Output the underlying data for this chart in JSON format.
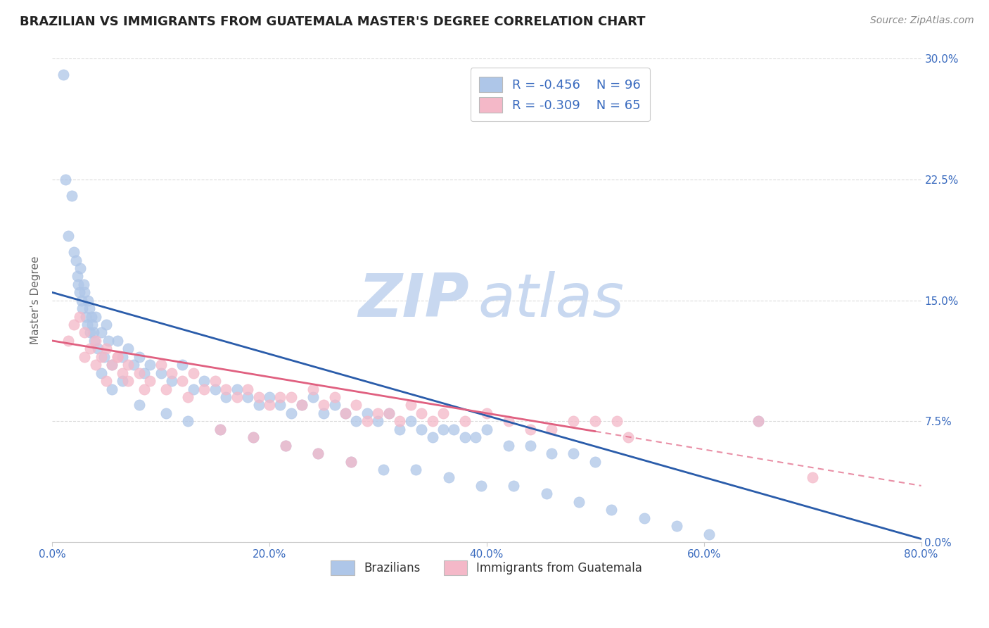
{
  "title": "BRAZILIAN VS IMMIGRANTS FROM GUATEMALA MASTER'S DEGREE CORRELATION CHART",
  "source_text": "Source: ZipAtlas.com",
  "ylabel": "Master's Degree",
  "xlim": [
    0.0,
    80.0
  ],
  "ylim": [
    0.0,
    30.0
  ],
  "x_ticks": [
    0.0,
    20.0,
    40.0,
    60.0,
    80.0
  ],
  "x_tick_labels": [
    "0.0%",
    "20.0%",
    "40.0%",
    "60.0%",
    "80.0%"
  ],
  "y_ticks_right": [
    0.0,
    7.5,
    15.0,
    22.5,
    30.0
  ],
  "y_tick_labels_right": [
    "0.0%",
    "7.5%",
    "15.0%",
    "22.5%",
    "30.0%"
  ],
  "color_brazilian": "#aec6e8",
  "color_guatemala": "#f4b8c8",
  "line_color_brazilian": "#2a5caa",
  "line_color_guatemala": "#e06080",
  "watermark_zip_color": "#c8d8f0",
  "watermark_atlas_color": "#c8d8f0",
  "legend_label_brazilian": "Brazilians",
  "legend_label_guatemala": "Immigrants from Guatemala",
  "title_color": "#222222",
  "axis_label_color": "#3a6bbf",
  "legend_text_color": "#3a6bbf",
  "background_color": "#ffffff",
  "grid_color": "#d8d8d8",
  "blue_line_start_y": 15.5,
  "blue_line_end_y": 0.2,
  "pink_line_start_y": 12.5,
  "pink_line_end_y": 3.5,
  "brazilian_x": [
    1.0,
    1.2,
    1.5,
    1.8,
    2.0,
    2.2,
    2.3,
    2.4,
    2.5,
    2.6,
    2.7,
    2.8,
    2.9,
    3.0,
    3.1,
    3.2,
    3.3,
    3.4,
    3.5,
    3.6,
    3.7,
    3.8,
    3.9,
    4.0,
    4.2,
    4.5,
    4.8,
    5.0,
    5.2,
    5.5,
    6.0,
    6.5,
    7.0,
    7.5,
    8.0,
    8.5,
    9.0,
    10.0,
    11.0,
    12.0,
    13.0,
    14.0,
    15.0,
    16.0,
    17.0,
    18.0,
    19.0,
    20.0,
    21.0,
    22.0,
    23.0,
    24.0,
    25.0,
    26.0,
    27.0,
    28.0,
    29.0,
    30.0,
    31.0,
    32.0,
    33.0,
    34.0,
    35.0,
    36.0,
    37.0,
    38.0,
    39.0,
    40.0,
    42.0,
    44.0,
    46.0,
    48.0,
    50.0,
    4.5,
    5.5,
    6.5,
    8.0,
    10.5,
    12.5,
    15.5,
    18.5,
    21.5,
    24.5,
    27.5,
    30.5,
    33.5,
    36.5,
    39.5,
    42.5,
    45.5,
    48.5,
    51.5,
    54.5,
    57.5,
    60.5,
    65.0
  ],
  "brazilian_y": [
    29.0,
    22.5,
    19.0,
    21.5,
    18.0,
    17.5,
    16.5,
    16.0,
    15.5,
    17.0,
    15.0,
    14.5,
    16.0,
    15.5,
    14.0,
    13.5,
    15.0,
    14.5,
    13.0,
    14.0,
    13.5,
    13.0,
    12.5,
    14.0,
    12.0,
    13.0,
    11.5,
    13.5,
    12.5,
    11.0,
    12.5,
    11.5,
    12.0,
    11.0,
    11.5,
    10.5,
    11.0,
    10.5,
    10.0,
    11.0,
    9.5,
    10.0,
    9.5,
    9.0,
    9.5,
    9.0,
    8.5,
    9.0,
    8.5,
    8.0,
    8.5,
    9.0,
    8.0,
    8.5,
    8.0,
    7.5,
    8.0,
    7.5,
    8.0,
    7.0,
    7.5,
    7.0,
    6.5,
    7.0,
    7.0,
    6.5,
    6.5,
    7.0,
    6.0,
    6.0,
    5.5,
    5.5,
    5.0,
    10.5,
    9.5,
    10.0,
    8.5,
    8.0,
    7.5,
    7.0,
    6.5,
    6.0,
    5.5,
    5.0,
    4.5,
    4.5,
    4.0,
    3.5,
    3.5,
    3.0,
    2.5,
    2.0,
    1.5,
    1.0,
    0.5,
    7.5
  ],
  "guatemala_x": [
    1.5,
    2.0,
    2.5,
    3.0,
    3.5,
    4.0,
    4.5,
    5.0,
    5.5,
    6.0,
    6.5,
    7.0,
    8.0,
    9.0,
    10.0,
    11.0,
    12.0,
    13.0,
    14.0,
    15.0,
    16.0,
    17.0,
    18.0,
    19.0,
    20.0,
    21.0,
    22.0,
    23.0,
    24.0,
    25.0,
    26.0,
    27.0,
    28.0,
    29.0,
    30.0,
    31.0,
    32.0,
    33.0,
    34.0,
    35.0,
    36.0,
    38.0,
    40.0,
    42.0,
    44.0,
    46.0,
    48.0,
    50.0,
    52.0,
    53.0,
    3.0,
    4.0,
    5.0,
    6.0,
    7.0,
    8.5,
    10.5,
    12.5,
    15.5,
    18.5,
    21.5,
    24.5,
    27.5,
    65.0,
    70.0
  ],
  "guatemala_y": [
    12.5,
    13.5,
    14.0,
    13.0,
    12.0,
    12.5,
    11.5,
    12.0,
    11.0,
    11.5,
    10.5,
    11.0,
    10.5,
    10.0,
    11.0,
    10.5,
    10.0,
    10.5,
    9.5,
    10.0,
    9.5,
    9.0,
    9.5,
    9.0,
    8.5,
    9.0,
    9.0,
    8.5,
    9.5,
    8.5,
    9.0,
    8.0,
    8.5,
    7.5,
    8.0,
    8.0,
    7.5,
    8.5,
    8.0,
    7.5,
    8.0,
    7.5,
    8.0,
    7.5,
    7.0,
    7.0,
    7.5,
    7.5,
    7.5,
    6.5,
    11.5,
    11.0,
    10.0,
    11.5,
    10.0,
    9.5,
    9.5,
    9.0,
    7.0,
    6.5,
    6.0,
    5.5,
    5.0,
    7.5,
    4.0
  ]
}
